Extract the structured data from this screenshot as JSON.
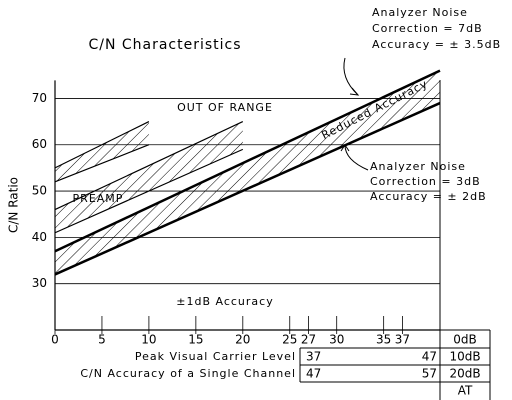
{
  "chart_data": {
    "type": "band",
    "title": "C/N Characteristics",
    "y_label": "C/N Ratio",
    "xlim": [
      0,
      41
    ],
    "ylim": [
      20,
      77
    ],
    "xticks": [
      0,
      5,
      10,
      15,
      20,
      25,
      27,
      30,
      35,
      37
    ],
    "yticks": [
      30,
      40,
      50,
      60,
      70
    ],
    "grid": true,
    "color": "#000000",
    "bands": [
      {
        "x": [
          0,
          41
        ],
        "low": [
          32,
          69
        ],
        "high": [
          37,
          76
        ]
      },
      {
        "x": [
          0,
          20
        ],
        "low": [
          41,
          59
        ],
        "high": [
          46,
          65
        ]
      },
      {
        "x": [
          0,
          10
        ],
        "low": [
          52,
          60
        ],
        "high": [
          55,
          65
        ]
      }
    ],
    "annotations": {
      "out_of_range": "OUT OF RANGE",
      "preamp": "PREAMP",
      "reduced": "Reduced Accuracy",
      "one_db": "±1dB  Accuracy",
      "note_7db": [
        "Analyzer Noise",
        "Correction = 7dB",
        "Accuracy = ± 3.5dB"
      ],
      "note_3db": [
        "Analyzer Noise",
        "Correction = 3dB",
        "Accuracy = ± 2dB"
      ]
    },
    "table": {
      "attenuation_top": "0dB",
      "rows": [
        [
          "Peak Visual Carrier Level",
          "37",
          "47",
          "10dB"
        ],
        [
          "C/N Accuracy of a Single Channel",
          "47",
          "57",
          "20dB"
        ]
      ],
      "footer": "AT"
    }
  }
}
